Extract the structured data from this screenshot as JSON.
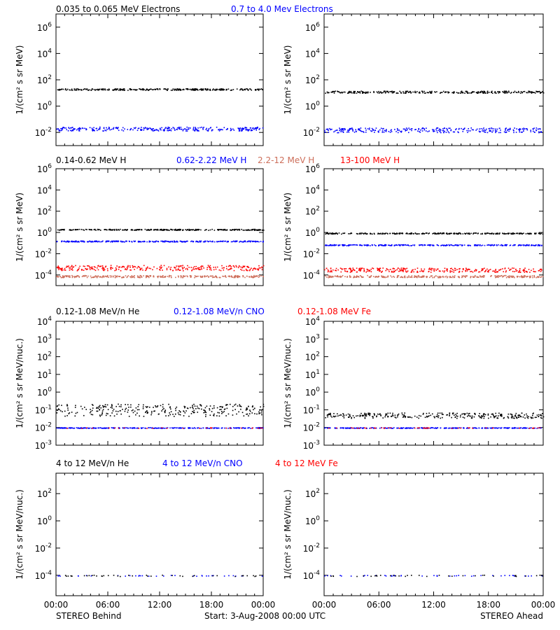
{
  "colors": {
    "black": "#000000",
    "blue": "#0000ff",
    "orange": "#cd6e5a",
    "red": "#ff0000"
  },
  "footer": {
    "x_ticks": [
      "00:00",
      "06:00",
      "12:00",
      "18:00",
      "00:00"
    ],
    "left_label": "STEREO Behind",
    "center_label": "Start:  3-Aug-2008 00:00 UTC",
    "right_label": "STEREO Ahead"
  },
  "chart_data": [
    {
      "type": "scatter",
      "group": "electrons",
      "legend": [
        {
          "text": "0.035 to 0.065 MeV Electrons",
          "color": "black"
        },
        {
          "text": "0.7 to 4.0 Mev Electrons",
          "color": "blue"
        }
      ],
      "ylabel": "1/(cm² s sr MeV)",
      "ylim_exp": [
        -3,
        7
      ],
      "y_ticks": [
        {
          "exp": -2,
          "label": "10-2"
        },
        {
          "exp": 0,
          "label": "100"
        },
        {
          "exp": 2,
          "label": "102"
        },
        {
          "exp": 4,
          "label": "104"
        },
        {
          "exp": 6,
          "label": "106"
        }
      ],
      "xlim_hours": [
        0,
        24
      ],
      "panels": [
        {
          "spacecraft": "STEREO Behind",
          "series": [
            {
              "color": "black",
              "level_exp": 1.3,
              "spread": 0.06,
              "sparse": false
            },
            {
              "color": "blue",
              "level_exp": -1.7,
              "spread": 0.15,
              "sparse": false
            }
          ]
        },
        {
          "spacecraft": "STEREO Ahead",
          "series": [
            {
              "color": "black",
              "level_exp": 1.1,
              "spread": 0.08,
              "sparse": false
            },
            {
              "color": "blue",
              "level_exp": -1.8,
              "spread": 0.18,
              "sparse": false
            }
          ]
        }
      ]
    },
    {
      "type": "scatter",
      "group": "protons",
      "legend": [
        {
          "text": "0.14-0.62 MeV H",
          "color": "black"
        },
        {
          "text": "0.62-2.22 MeV H",
          "color": "blue"
        },
        {
          "text": "2.2-12 MeV H",
          "color": "orange"
        },
        {
          "text": "13-100 MeV H",
          "color": "red"
        }
      ],
      "ylabel": "1/(cm² s sr MeV)",
      "ylim_exp": [
        -5,
        6
      ],
      "y_ticks": [
        {
          "exp": -4,
          "label": "10-4"
        },
        {
          "exp": -2,
          "label": "10-2"
        },
        {
          "exp": 0,
          "label": "100"
        },
        {
          "exp": 2,
          "label": "102"
        },
        {
          "exp": 4,
          "label": "104"
        },
        {
          "exp": 6,
          "label": "106"
        }
      ],
      "xlim_hours": [
        0,
        24
      ],
      "panels": [
        {
          "spacecraft": "STEREO Behind",
          "series": [
            {
              "color": "black",
              "level_exp": 0.3,
              "spread": 0.05,
              "sparse": false
            },
            {
              "color": "blue",
              "level_exp": -0.8,
              "spread": 0.05,
              "sparse": false
            },
            {
              "color": "red",
              "level_exp": -3.3,
              "spread": 0.25,
              "sparse": false
            },
            {
              "color": "orange",
              "level_exp": -4.1,
              "spread": 0.1,
              "sparse": false
            }
          ]
        },
        {
          "spacecraft": "STEREO Ahead",
          "series": [
            {
              "color": "black",
              "level_exp": -0.05,
              "spread": 0.05,
              "sparse": false
            },
            {
              "color": "blue",
              "level_exp": -1.15,
              "spread": 0.05,
              "sparse": false
            },
            {
              "color": "red",
              "level_exp": -3.5,
              "spread": 0.2,
              "sparse": false
            },
            {
              "color": "orange",
              "level_exp": -4.1,
              "spread": 0.1,
              "sparse": false
            }
          ]
        }
      ]
    },
    {
      "type": "scatter",
      "group": "heavy-low",
      "legend": [
        {
          "text": "0.12-1.08 MeV/n He",
          "color": "black"
        },
        {
          "text": "0.12-1.08 MeV/n CNO",
          "color": "blue"
        },
        {
          "text": "0.12-1.08 MeV Fe",
          "color": "red"
        }
      ],
      "ylabel": "1/(cm² s sr MeV/nuc.)",
      "ylim_exp": [
        -3,
        4
      ],
      "y_ticks": [
        {
          "exp": -3,
          "label": "10-3"
        },
        {
          "exp": -2,
          "label": "10-2"
        },
        {
          "exp": -1,
          "label": "10-1"
        },
        {
          "exp": 0,
          "label": "100"
        },
        {
          "exp": 1,
          "label": "101"
        },
        {
          "exp": 2,
          "label": "102"
        },
        {
          "exp": 3,
          "label": "103"
        },
        {
          "exp": 4,
          "label": "104"
        }
      ],
      "xlim_hours": [
        0,
        24
      ],
      "panels": [
        {
          "spacecraft": "STEREO Behind",
          "series": [
            {
              "color": "black",
              "level_exp": -1.0,
              "spread": 0.35,
              "sparse": false
            },
            {
              "color": "blue",
              "level_exp": -2.0,
              "spread": 0.02,
              "sparse": false
            },
            {
              "color": "red",
              "level_exp": -2.0,
              "spread": 0.02,
              "sparse": true
            }
          ]
        },
        {
          "spacecraft": "STEREO Ahead",
          "series": [
            {
              "color": "black",
              "level_exp": -1.3,
              "spread": 0.15,
              "sparse": false
            },
            {
              "color": "blue",
              "level_exp": -2.0,
              "spread": 0.02,
              "sparse": false
            },
            {
              "color": "red",
              "level_exp": -2.0,
              "spread": 0.02,
              "sparse": true
            }
          ]
        }
      ]
    },
    {
      "type": "scatter",
      "group": "heavy-high",
      "legend": [
        {
          "text": "4 to 12 MeV/n He",
          "color": "black"
        },
        {
          "text": "4 to 12 MeV/n CNO",
          "color": "blue"
        },
        {
          "text": "4 to 12 MeV Fe",
          "color": "red"
        }
      ],
      "ylabel": "1/(cm² s sr MeV/nuc.)",
      "ylim_exp": [
        -5.5,
        3.5
      ],
      "y_ticks": [
        {
          "exp": -4,
          "label": "10-4"
        },
        {
          "exp": -2,
          "label": "10-2"
        },
        {
          "exp": 0,
          "label": "100"
        },
        {
          "exp": 2,
          "label": "102"
        }
      ],
      "xlim_hours": [
        0,
        24
      ],
      "panels": [
        {
          "spacecraft": "STEREO Behind",
          "series": [
            {
              "color": "blue",
              "level_exp": -4.0,
              "spread": 0.03,
              "sparse": true
            },
            {
              "color": "black",
              "level_exp": -4.0,
              "spread": 0.05,
              "sparse": true
            }
          ]
        },
        {
          "spacecraft": "STEREO Ahead",
          "series": [
            {
              "color": "blue",
              "level_exp": -4.0,
              "spread": 0.03,
              "sparse": true
            },
            {
              "color": "black",
              "level_exp": -4.0,
              "spread": 0.05,
              "sparse": true
            }
          ]
        }
      ]
    }
  ]
}
